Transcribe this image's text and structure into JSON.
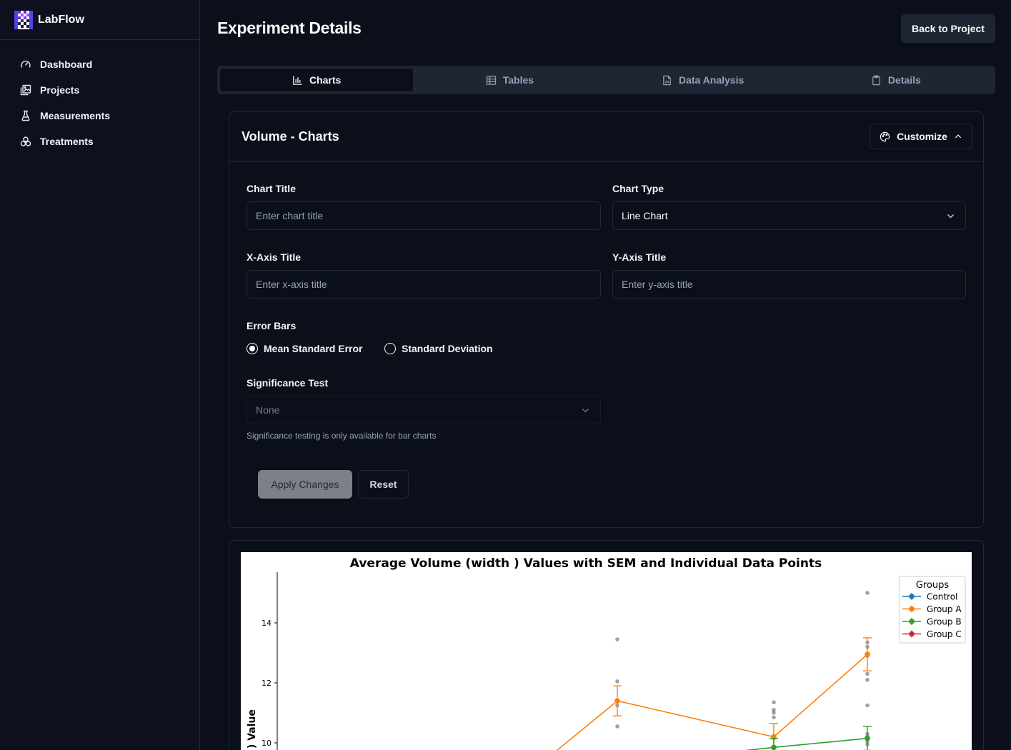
{
  "app": {
    "name": "LabFlow"
  },
  "sidebar": {
    "items": [
      {
        "label": "Dashboard",
        "icon": "gauge-icon"
      },
      {
        "label": "Projects",
        "icon": "images-icon"
      },
      {
        "label": "Measurements",
        "icon": "flask-icon"
      },
      {
        "label": "Treatments",
        "icon": "biohazard-icon"
      }
    ]
  },
  "header": {
    "title": "Experiment Details",
    "back_label": "Back to Project"
  },
  "tabs": [
    {
      "label": "Charts",
      "active": true
    },
    {
      "label": "Tables",
      "active": false
    },
    {
      "label": "Data Analysis",
      "active": false
    },
    {
      "label": "Details",
      "active": false
    }
  ],
  "panel": {
    "title": "Volume - Charts",
    "customize_label": "Customize",
    "chart_title": {
      "label": "Chart Title",
      "placeholder": "Enter chart title",
      "value": ""
    },
    "chart_type": {
      "label": "Chart Type",
      "value": "Line Chart"
    },
    "x_axis": {
      "label": "X-Axis Title",
      "placeholder": "Enter x-axis title",
      "value": ""
    },
    "y_axis": {
      "label": "Y-Axis Title",
      "placeholder": "Enter y-axis title",
      "value": ""
    },
    "error_bars": {
      "label": "Error Bars",
      "options": [
        "Mean Standard Error",
        "Standard Deviation"
      ],
      "selected": "Mean Standard Error"
    },
    "significance": {
      "label": "Significance Test",
      "value": "None",
      "help": "Significance testing is only available for bar charts"
    },
    "apply_label": "Apply Changes",
    "reset_label": "Reset"
  },
  "chart_data": {
    "type": "line",
    "title": "Average Volume (width ) Values with SEM and Individual Data Points",
    "ylabel": "h ) Value",
    "xlabel": "",
    "yticks": [
      10,
      12,
      14
    ],
    "ylim": [
      9.8,
      15.5
    ],
    "legend": {
      "title": "Groups",
      "placement": "top-right"
    },
    "x_positions": [
      1,
      2,
      3
    ],
    "series": [
      {
        "name": "Control",
        "color": "#1f77b4",
        "points": []
      },
      {
        "name": "Group A",
        "color": "#ff7f0e",
        "points": [
          {
            "x": 1,
            "y": 11.4,
            "err": 0.5
          },
          {
            "x": 2,
            "y": 10.2,
            "err": 0.45
          },
          {
            "x": 3,
            "y": 12.95,
            "err": 0.55
          }
        ],
        "individual": [
          [
            13.45,
            12.05,
            11.4,
            11.25,
            10.55
          ],
          [
            11.35,
            11.1,
            11.0,
            10.85,
            10.2,
            10.15,
            9.85
          ],
          [
            15.0,
            13.35,
            13.2,
            12.9,
            12.3,
            12.1,
            11.25
          ]
        ]
      },
      {
        "name": "Group B",
        "color": "#2ca02c",
        "points": [
          {
            "x": 2,
            "y": 9.85,
            "err": 0.3
          },
          {
            "x": 3,
            "y": 10.15,
            "err": 0.4
          }
        ],
        "individual": [
          [],
          [
            9.85
          ],
          [
            10.3,
            10.2,
            10.15,
            10.05,
            9.95
          ]
        ]
      },
      {
        "name": "Group C",
        "color": "#d62728",
        "points": []
      }
    ]
  }
}
